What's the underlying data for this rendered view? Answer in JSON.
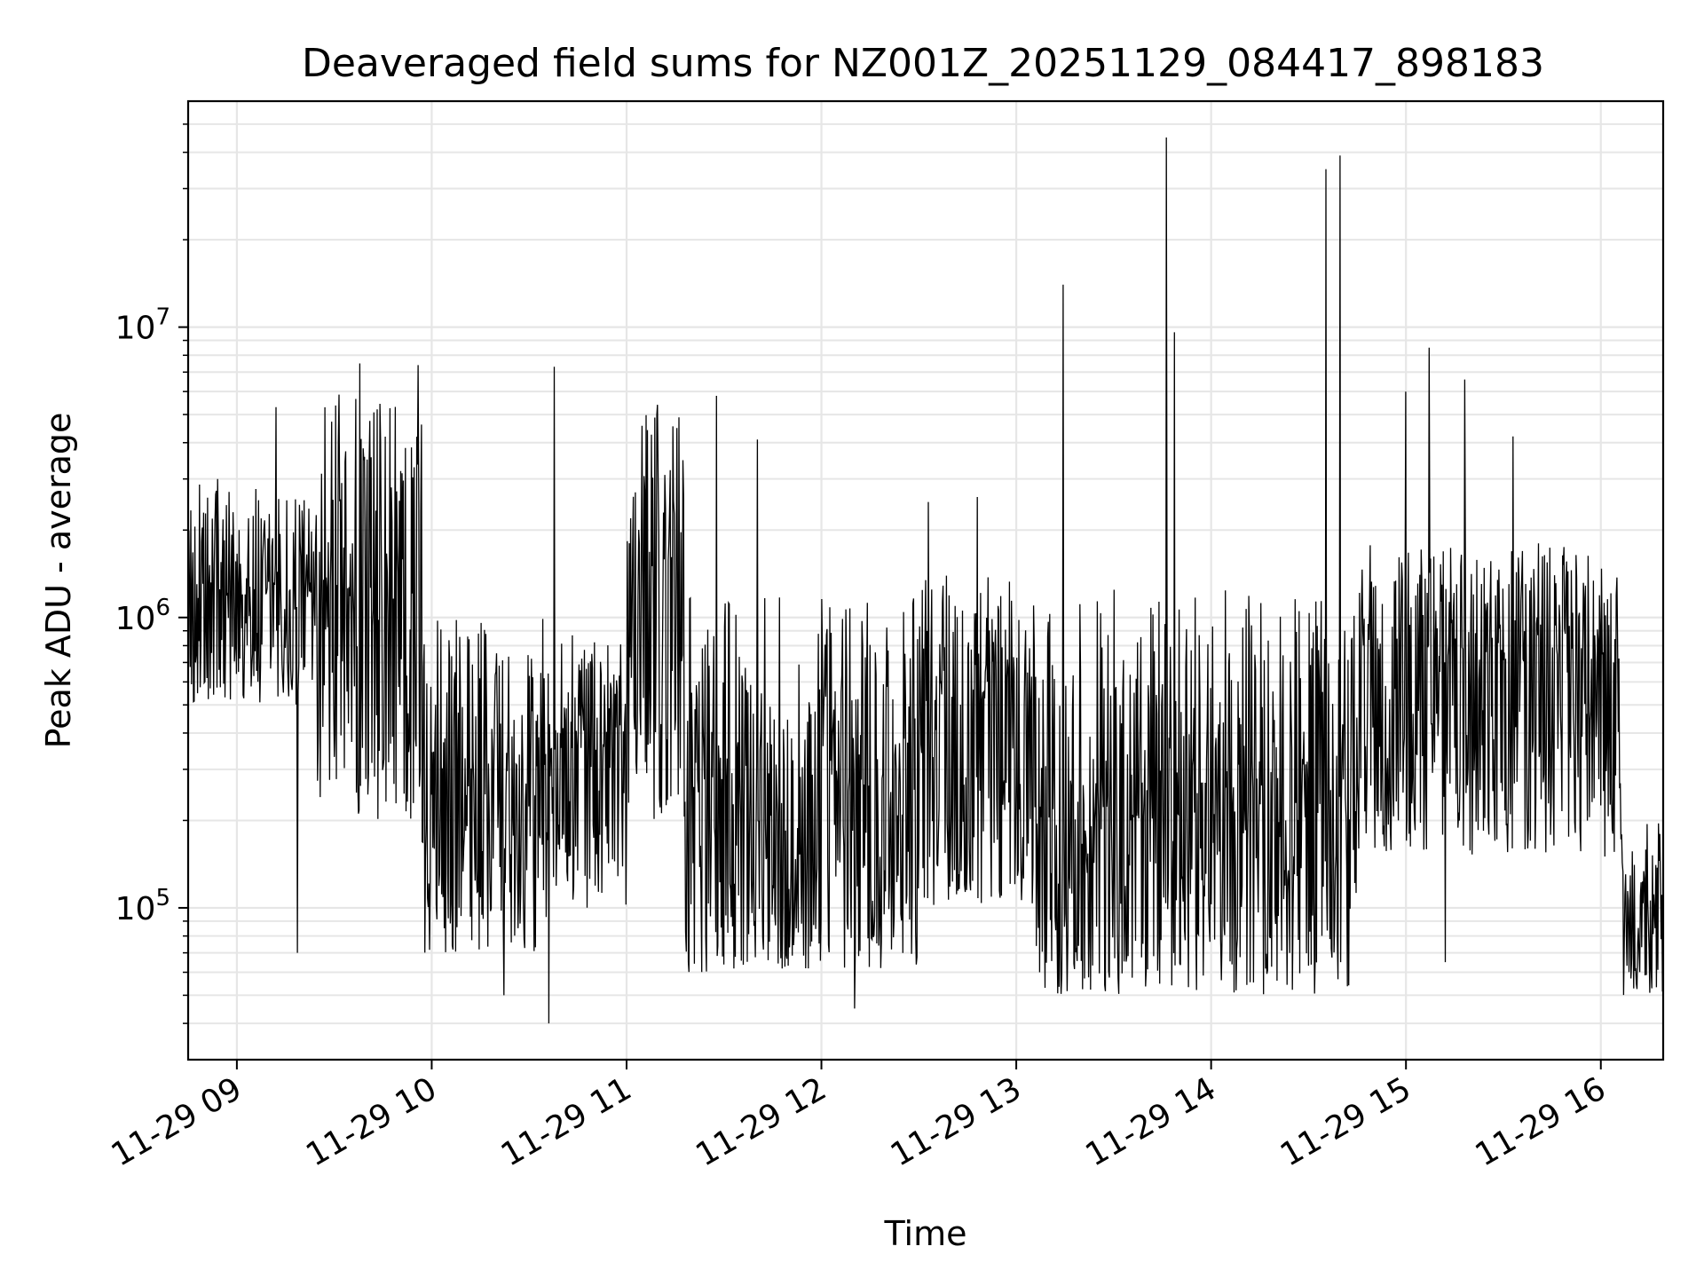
{
  "chart_data": {
    "type": "line",
    "title": "Deaveraged field sums for NZ001Z_20251129_084417_898183",
    "xlabel": "Time",
    "ylabel": "Peak ADU - average",
    "yscale": "log",
    "ylim": [
      30000,
      60000000
    ],
    "xlim_hours": [
      8.75,
      16.32
    ],
    "grid": true,
    "line_color": "#000000",
    "grid_color": "#e6e6e6",
    "x_ticks": [
      {
        "hour": 9,
        "label": "11-29 09"
      },
      {
        "hour": 10,
        "label": "11-29 10"
      },
      {
        "hour": 11,
        "label": "11-29 11"
      },
      {
        "hour": 12,
        "label": "11-29 12"
      },
      {
        "hour": 13,
        "label": "11-29 13"
      },
      {
        "hour": 14,
        "label": "11-29 14"
      },
      {
        "hour": 15,
        "label": "11-29 15"
      },
      {
        "hour": 16,
        "label": "11-29 16"
      }
    ],
    "y_ticks": [
      {
        "value": 100000,
        "base": "10",
        "exp": "5"
      },
      {
        "value": 1000000,
        "base": "10",
        "exp": "6"
      },
      {
        "value": 10000000,
        "base": "10",
        "exp": "7"
      }
    ],
    "series": [
      {
        "name": "Peak ADU - average",
        "segments": [
          {
            "start": 8.75,
            "end": 9.4,
            "median": 1200000,
            "low": 500000,
            "high": 3000000
          },
          {
            "start": 9.4,
            "end": 9.95,
            "median": 900000,
            "low": 200000,
            "high": 6000000
          },
          {
            "start": 9.95,
            "end": 10.6,
            "median": 300000,
            "low": 70000,
            "high": 1000000
          },
          {
            "start": 10.6,
            "end": 11.0,
            "median": 350000,
            "low": 100000,
            "high": 900000
          },
          {
            "start": 11.0,
            "end": 11.3,
            "median": 1500000,
            "low": 200000,
            "high": 5000000
          },
          {
            "start": 11.3,
            "end": 12.5,
            "median": 250000,
            "low": 60000,
            "high": 1200000
          },
          {
            "start": 12.5,
            "end": 13.1,
            "median": 500000,
            "low": 100000,
            "high": 1400000
          },
          {
            "start": 13.1,
            "end": 14.75,
            "median": 200000,
            "low": 50000,
            "high": 1300000
          },
          {
            "start": 14.75,
            "end": 16.1,
            "median": 700000,
            "low": 150000,
            "high": 1800000
          },
          {
            "start": 16.1,
            "end": 16.32,
            "median": 100000,
            "low": 50000,
            "high": 200000
          }
        ],
        "spikes": [
          {
            "hour": 8.9,
            "value": 3000000
          },
          {
            "hour": 9.2,
            "value": 5300000
          },
          {
            "hour": 9.31,
            "value": 70000
          },
          {
            "hour": 9.63,
            "value": 7500000
          },
          {
            "hour": 9.93,
            "value": 7400000
          },
          {
            "hour": 10.37,
            "value": 50000
          },
          {
            "hour": 10.6,
            "value": 40000
          },
          {
            "hour": 10.63,
            "value": 7300000
          },
          {
            "hour": 11.16,
            "value": 5400000
          },
          {
            "hour": 11.46,
            "value": 5800000
          },
          {
            "hour": 11.67,
            "value": 4100000
          },
          {
            "hour": 12.17,
            "value": 45000
          },
          {
            "hour": 12.55,
            "value": 2500000
          },
          {
            "hour": 12.8,
            "value": 2600000
          },
          {
            "hour": 13.24,
            "value": 14000000
          },
          {
            "hour": 13.77,
            "value": 45000000
          },
          {
            "hour": 13.81,
            "value": 9600000
          },
          {
            "hour": 14.59,
            "value": 35000000
          },
          {
            "hour": 14.66,
            "value": 39000000
          },
          {
            "hour": 15.0,
            "value": 6000000
          },
          {
            "hour": 15.12,
            "value": 8500000
          },
          {
            "hour": 15.3,
            "value": 6600000
          },
          {
            "hour": 15.55,
            "value": 4200000
          },
          {
            "hour": 15.2,
            "value": 65000
          }
        ]
      }
    ]
  }
}
